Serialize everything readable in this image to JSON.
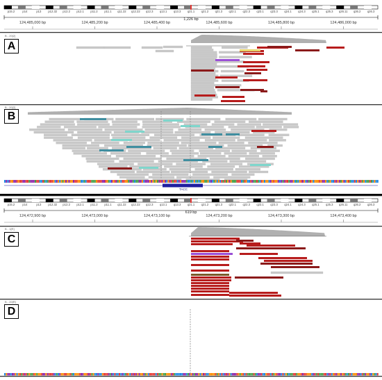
{
  "colors": {
    "read_gray": "#c8c8c8",
    "read_red": "#b71c1c",
    "read_dark_red": "#8b1a1a",
    "read_teal": "#3f8ea0",
    "read_cyan": "#7fd6cc",
    "read_purple": "#9b4fd6",
    "read_yellow": "#e8d36a",
    "read_olive": "#7a5a2a",
    "coverage": "#b0b0b0",
    "gene": "#1f1fa0",
    "separator": "#000000"
  },
  "top_view": {
    "cytobands": [
      "p15.2",
      "p14",
      "p13",
      "p12.32",
      "p12.2",
      "p12.1",
      "p11.2",
      "p11.1",
      "q11.22",
      "q12.22",
      "q12.3",
      "q13.1",
      "q13.3",
      "q21.1",
      "q21.2",
      "q21.3",
      "q22.1",
      "q22.3",
      "q23.1",
      "q23.3",
      "q24.1",
      "q24.3",
      "q25.1",
      "q25.3",
      "q26.11",
      "q26.2",
      "q26.3"
    ],
    "range_width": "1,226 bp",
    "scale_ticks": [
      "124,485,000 bp",
      "124,485,200 bp",
      "124,485,400 bp",
      "124,485,600 bp",
      "124,485,800 bp",
      "124,486,000 bp"
    ],
    "gene_label": "TACC"
  },
  "bottom_view": {
    "cytobands": [
      "p15.2",
      "p14",
      "p13",
      "p12.32",
      "p12.2",
      "p12.1",
      "p11.2",
      "p11.1",
      "q11.22",
      "q12.22",
      "q12.3",
      "q13.1",
      "q13.3",
      "q21.1",
      "q21.2",
      "q21.3",
      "q22.1",
      "q22.3",
      "q23.1",
      "q23.3",
      "q24.1",
      "q24.3",
      "q25.1",
      "q25.3",
      "q26.11",
      "q26.2",
      "q26.3"
    ],
    "range_width": "619 bp",
    "scale_ticks": [
      "124,472,900 bp",
      "124,473,000 bp",
      "124,473,100 bp",
      "124,473,200 bp",
      "124,473,300 bp",
      "124,473,400 bp"
    ]
  },
  "panels": {
    "A": {
      "label": "A",
      "track": "B - 20[2]"
    },
    "B": {
      "label": "B",
      "track": "B - 20[2]"
    },
    "C": {
      "label": "C",
      "track": "B - 1[R]"
    },
    "D": {
      "label": "D",
      "track": "B - 20[R]"
    }
  }
}
